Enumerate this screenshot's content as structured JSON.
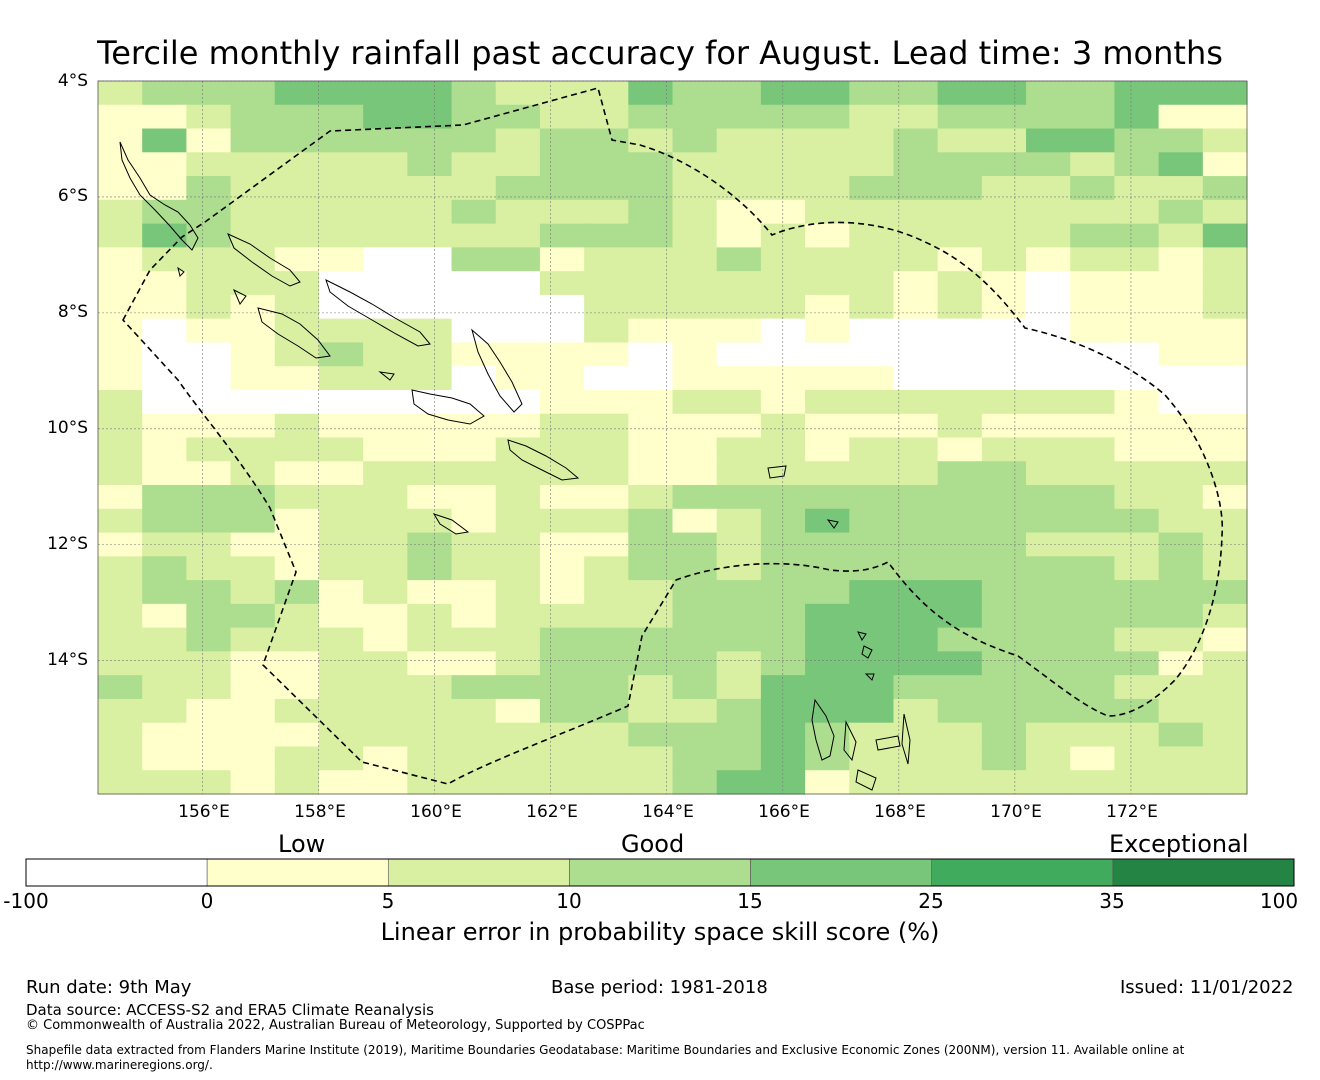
{
  "header": {
    "title": "Tercile monthly rainfall past accuracy for August. Lead time: 3 months"
  },
  "chart_data": {
    "type": "heatmap",
    "title": "Tercile monthly rainfall past accuracy for August. Lead time: 3 months",
    "xlabel": "",
    "ylabel": "",
    "x_ticks": [
      {
        "value": 156,
        "label": "156°E"
      },
      {
        "value": 158,
        "label": "158°E"
      },
      {
        "value": 160,
        "label": "160°E"
      },
      {
        "value": 162,
        "label": "162°E"
      },
      {
        "value": 164,
        "label": "164°E"
      },
      {
        "value": 166,
        "label": "166°E"
      },
      {
        "value": 168,
        "label": "168°E"
      },
      {
        "value": 170,
        "label": "170°E"
      },
      {
        "value": 172,
        "label": "172°E"
      }
    ],
    "y_ticks": [
      {
        "value": -4,
        "label": "4°S"
      },
      {
        "value": -6,
        "label": "6°S"
      },
      {
        "value": -8,
        "label": "8°S"
      },
      {
        "value": -10,
        "label": "10°S"
      },
      {
        "value": -12,
        "label": "12°S"
      },
      {
        "value": -14,
        "label": "14°S"
      }
    ],
    "xlim": [
      154.2,
      174.0
    ],
    "ylim": [
      -16.3,
      -4.0
    ],
    "cell_size_deg": [
      0.833,
      0.556
    ],
    "grid": true,
    "colorbar": {
      "title": "Linear error in probability space skill score (%)",
      "boundaries": [
        "-100",
        "0",
        "5",
        "10",
        "15",
        "25",
        "35",
        "100"
      ],
      "colors": [
        "#ffffff",
        "#ffffcc",
        "#d9f0a3",
        "#addd8e",
        "#78c679",
        "#41ab5d",
        "#238443"
      ],
      "categories": [
        {
          "label": "Low",
          "anchor_value": 2.5
        },
        {
          "label": "Good",
          "anchor_value": 12.5
        },
        {
          "label": "Exceptional",
          "anchor_value": 35
        }
      ]
    },
    "value_classes": "0: < 0 (white), 1: 0-5, 2: 5-10, 3: 10-15, 4: 15-25, 5: 25-35",
    "grid_values": [
      "23334444322243344334433444",
      "11233344332233333223333411",
      "14133333323323222232244332",
      "11222223223332222233332341",
      "11322222233332222333223223",
      "23322222322232112222222232",
      "24322222223332121222223324",
      "12221100331222322221212212",
      "11222000002222222212101112",
      "11212000000222221212101112",
      "10112222000211101000001111",
      "10012322111101000000000011",
      "10011222011001111100000000",
      "20000000001112212222222100",
      "21112111112211121112111111",
      "21222211122211221221222111",
      "21121122222211222223322222",
      "13332221121123333333333221",
      "23331222122231234333333322",
      "12211223221133233333322232",
      "23221223221233233333333232",
      "23323121121223333444333333",
      "21332112122223334444333332",
      "22322212223333334443333221",
      "22211221123333234444333312",
      "32211222333323244433333222",
      "22112222213322344423333322",
      "21111222222233343222322232",
      "21112212222223343222321222",
      "22212112222223441222222222"
    ]
  },
  "footer": {
    "run_date": "Run date: 9th May",
    "base_period": "Base period: 1981-2018",
    "issued": "Issued: 11/01/2022",
    "data_source": "Data source: ACCESS-S2 and ERA5 Climate Reanalysis",
    "copyright": "© Commonwealth of Australia 2022, Australian Bureau of Meteorology, Supported by COSPPac",
    "shapefile_line1": "Shapefile data extracted from Flanders Marine Institute (2019), Maritime Boundaries Geodatabase: Maritime Boundaries and Exclusive Economic Zones (200NM), version 11. Available online at",
    "shapefile_line2": "http://www.marineregions.org/."
  }
}
